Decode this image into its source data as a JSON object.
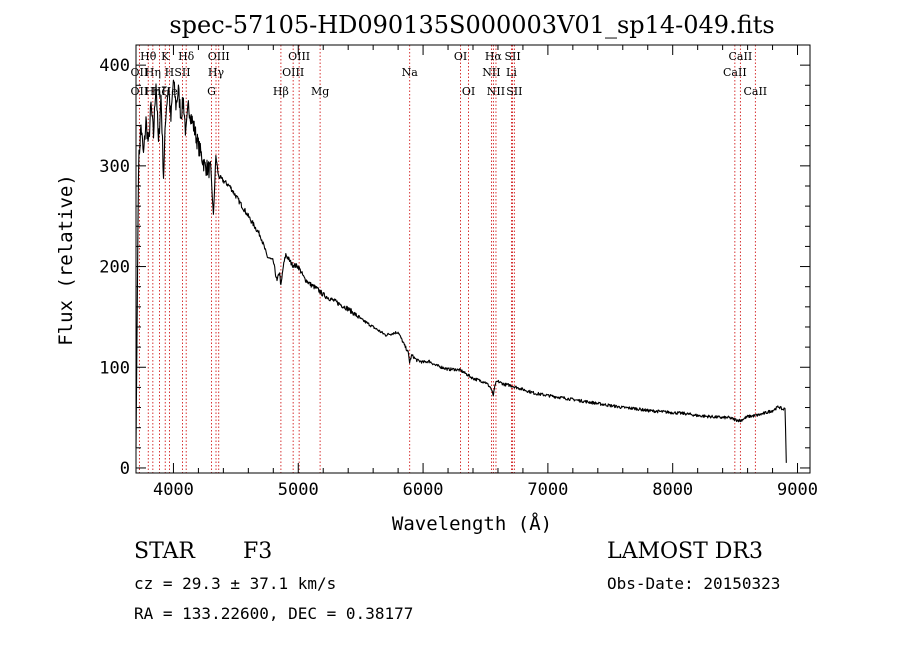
{
  "chart_data": {
    "type": "line",
    "title": "spec-57105-HD090135S000003V01_sp14-049.fits",
    "xlabel": "Wavelength (Å)",
    "ylabel": "Flux (relative)",
    "xlim": [
      3700,
      9100
    ],
    "ylim": [
      -5,
      420
    ],
    "xticks": [
      4000,
      5000,
      6000,
      7000,
      8000,
      9000
    ],
    "xtick_labels": [
      "4000",
      "5000",
      "6000",
      "7000",
      "8000",
      "9000"
    ],
    "yticks": [
      0,
      100,
      200,
      300,
      400
    ],
    "ytick_labels": [
      "0",
      "100",
      "200",
      "300",
      "400"
    ],
    "grid": false,
    "series": [
      {
        "name": "spectrum",
        "color": "#000000",
        "x": [
          3700,
          3720,
          3740,
          3760,
          3780,
          3800,
          3820,
          3840,
          3860,
          3880,
          3900,
          3920,
          3940,
          3960,
          3980,
          4000,
          4020,
          4040,
          4060,
          4080,
          4100,
          4120,
          4150,
          4200,
          4250,
          4300,
          4320,
          4340,
          4360,
          4400,
          4450,
          4500,
          4550,
          4600,
          4650,
          4700,
          4750,
          4800,
          4830,
          4850,
          4861,
          4880,
          4900,
          4950,
          5000,
          5050,
          5100,
          5150,
          5200,
          5300,
          5400,
          5500,
          5600,
          5700,
          5800,
          5850,
          5880,
          5892,
          5910,
          5950,
          6000,
          6050,
          6100,
          6150,
          6200,
          6250,
          6300,
          6350,
          6400,
          6450,
          6500,
          6540,
          6563,
          6580,
          6600,
          6650,
          6700,
          6750,
          6800,
          6900,
          7000,
          7100,
          7200,
          7300,
          7400,
          7500,
          7600,
          7700,
          7800,
          7900,
          8000,
          8100,
          8200,
          8300,
          8400,
          8450,
          8500,
          8542,
          8600,
          8662,
          8700,
          8750,
          8800,
          8850,
          8880,
          8900,
          8910
        ],
        "y": [
          20,
          300,
          340,
          310,
          345,
          320,
          360,
          330,
          385,
          320,
          370,
          290,
          355,
          380,
          345,
          385,
          360,
          375,
          350,
          365,
          330,
          360,
          345,
          320,
          300,
          295,
          250,
          310,
          290,
          285,
          280,
          270,
          260,
          250,
          240,
          230,
          210,
          205,
          185,
          195,
          180,
          200,
          212,
          202,
          200,
          188,
          182,
          178,
          172,
          165,
          158,
          148,
          140,
          132,
          135,
          122,
          115,
          105,
          112,
          107,
          105,
          106,
          102,
          100,
          98,
          98,
          97,
          93,
          89,
          87,
          85,
          80,
          72,
          84,
          86,
          83,
          82,
          80,
          78,
          74,
          72,
          70,
          68,
          66,
          64,
          62,
          60,
          59,
          57,
          56,
          55,
          54,
          52,
          51,
          50,
          50,
          48,
          47,
          51,
          52,
          53,
          55,
          57,
          61,
          58,
          59,
          5
        ]
      }
    ],
    "annotations": [
      {
        "label": "OII",
        "x": 3727,
        "row": 2
      },
      {
        "label": "OII",
        "x": 3727,
        "row": 3
      },
      {
        "label": "Hθ",
        "x": 3798,
        "row": 1
      },
      {
        "label": "Hη",
        "x": 3835,
        "row": 2
      },
      {
        "label": "Hη",
        "x": 3835,
        "row": 3
      },
      {
        "label": "Hζ",
        "x": 3889,
        "row": 3
      },
      {
        "label": "K",
        "x": 3934,
        "row": 1
      },
      {
        "label": "H",
        "x": 3968,
        "row": 2
      },
      {
        "label": "He",
        "x": 3970,
        "row": 3
      },
      {
        "label": "SII",
        "x": 4072,
        "row": 2
      },
      {
        "label": "Hδ",
        "x": 4102,
        "row": 1
      },
      {
        "label": "OIII",
        "x": 4363,
        "row": 1
      },
      {
        "label": "Hγ",
        "x": 4341,
        "row": 2
      },
      {
        "label": "G",
        "x": 4305,
        "row": 3
      },
      {
        "label": "Hβ",
        "x": 4861,
        "row": 3
      },
      {
        "label": "OIII",
        "x": 5007,
        "row": 1
      },
      {
        "label": "OIII",
        "x": 4959,
        "row": 2
      },
      {
        "label": "Mg",
        "x": 5175,
        "row": 3
      },
      {
        "label": "Na",
        "x": 5893,
        "row": 2
      },
      {
        "label": "OI",
        "x": 6300,
        "row": 1
      },
      {
        "label": "OI",
        "x": 6364,
        "row": 3
      },
      {
        "label": "Hα",
        "x": 6563,
        "row": 1
      },
      {
        "label": "NII",
        "x": 6548,
        "row": 2
      },
      {
        "label": "NII",
        "x": 6584,
        "row": 3
      },
      {
        "label": "SII",
        "x": 6717,
        "row": 1
      },
      {
        "label": "Li",
        "x": 6708,
        "row": 2
      },
      {
        "label": "SII",
        "x": 6731,
        "row": 3
      },
      {
        "label": "CaII",
        "x": 8542,
        "row": 1
      },
      {
        "label": "CaII",
        "x": 8498,
        "row": 2
      },
      {
        "label": "CaII",
        "x": 8662,
        "row": 3
      }
    ],
    "line_markers": [
      3727,
      3798,
      3835,
      3889,
      3934,
      3968,
      4072,
      4102,
      4305,
      4341,
      4363,
      4861,
      4959,
      5007,
      5175,
      5893,
      6300,
      6364,
      6548,
      6563,
      6584,
      6708,
      6717,
      6731,
      8498,
      8542,
      8662
    ],
    "marker_color": "#cc0000"
  },
  "info": {
    "class": "STAR",
    "subclass": "F3",
    "survey": "LAMOST DR3",
    "cz": "cz = 29.3 ± 37.1 km/s",
    "obs_date": "Obs-Date: 20150323",
    "coords": "RA = 133.22600, DEC =   0.38177"
  }
}
